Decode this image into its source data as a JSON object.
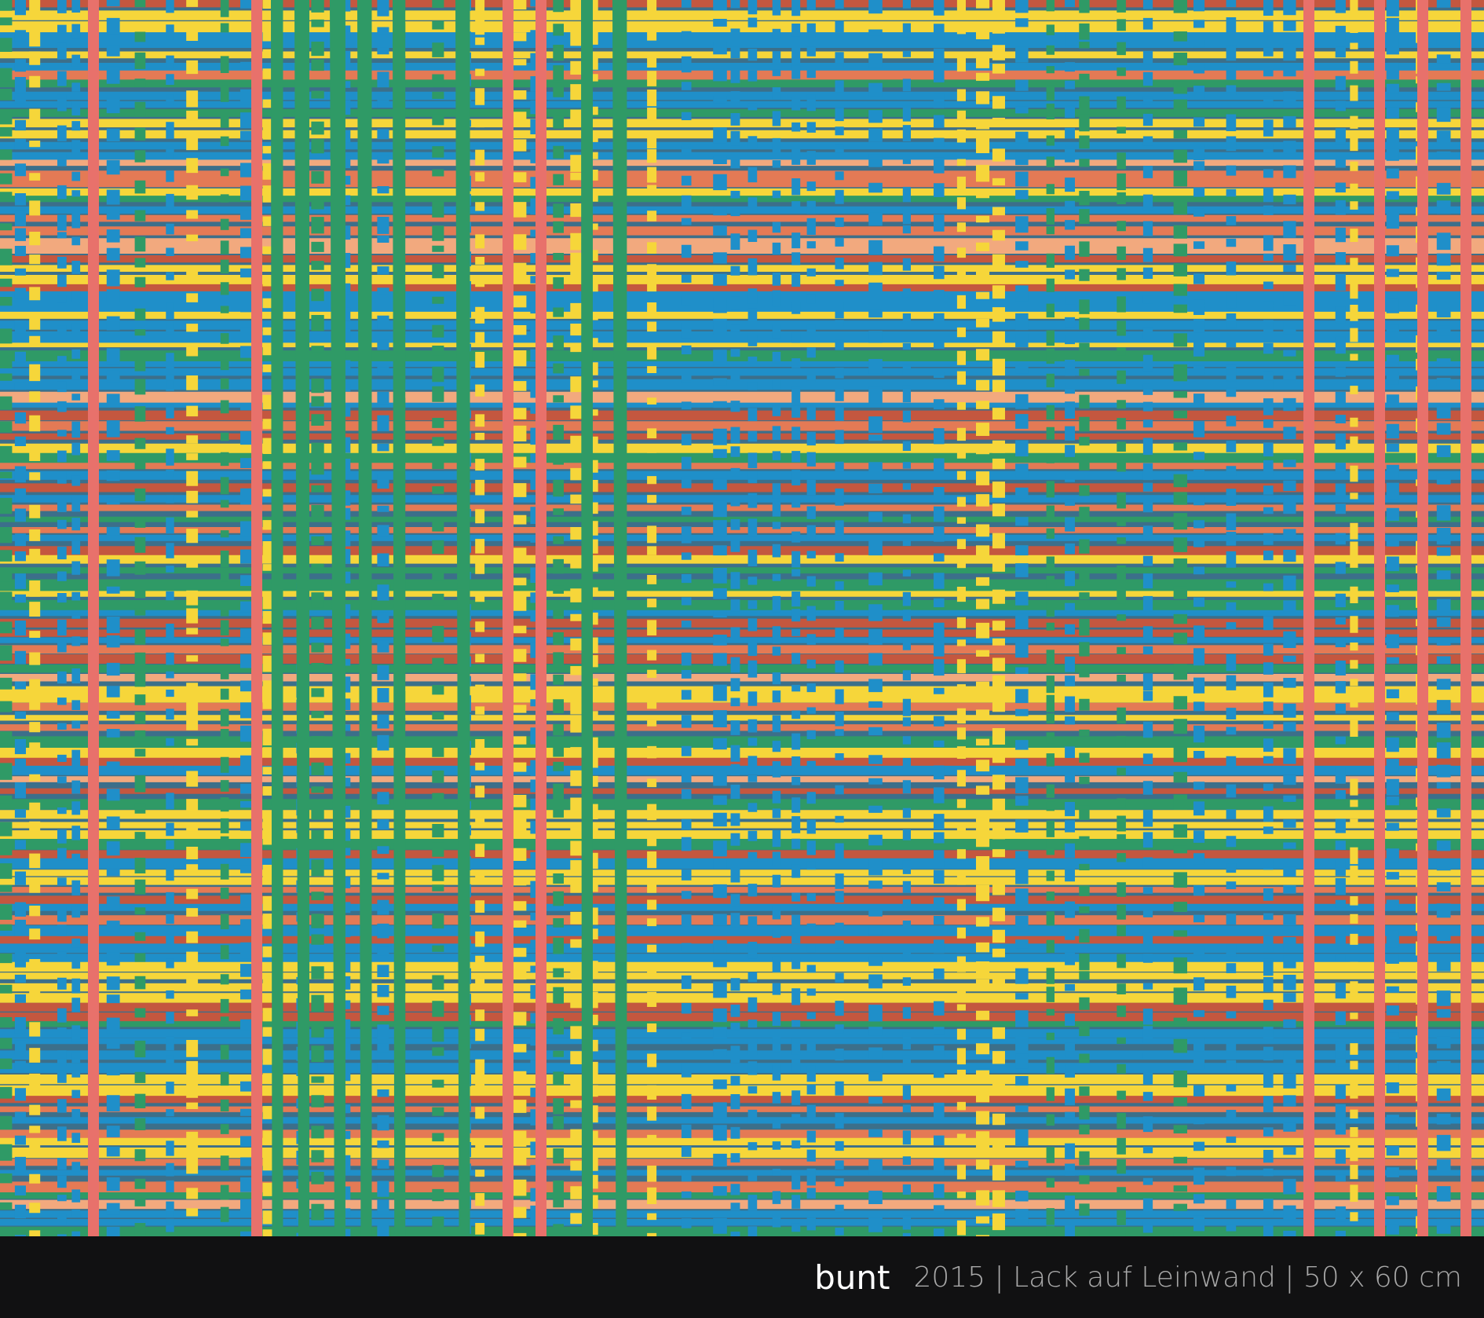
{
  "artwork": {
    "title": "bunt",
    "details": "2015 | Lack auf Leinwand | 50 x 60 cm"
  }
}
